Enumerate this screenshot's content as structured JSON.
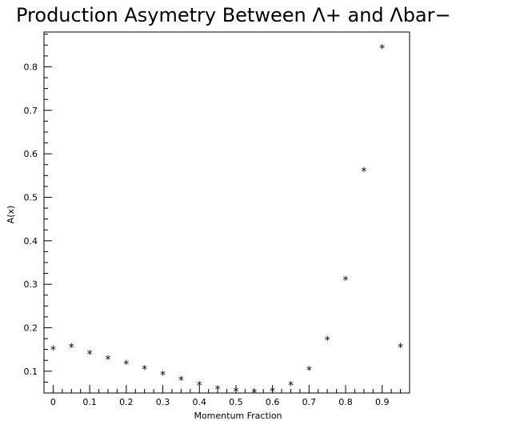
{
  "chart_data": {
    "type": "scatter",
    "title": "Production Asymetry Between Λ+ and Λbar−",
    "xlabel": "Momentum Fraction",
    "ylabel": "A(x)",
    "xlim": [
      -0.025,
      0.975
    ],
    "ylim": [
      0.05,
      0.88
    ],
    "x_ticks": [
      0,
      0.1,
      0.2,
      0.3,
      0.4,
      0.5,
      0.6,
      0.7,
      0.8,
      0.9
    ],
    "x_tick_labels": [
      "0",
      "0.1",
      "0.2",
      "0.3",
      "0.4",
      "0.5",
      "0.6",
      "0.7",
      "0.8",
      "0.9"
    ],
    "y_ticks": [
      0.1,
      0.2,
      0.3,
      0.4,
      0.5,
      0.6,
      0.7,
      0.8
    ],
    "y_tick_labels": [
      "0.1",
      "0.2",
      "0.3",
      "0.4",
      "0.5",
      "0.6",
      "0.7",
      "0.8"
    ],
    "grid": false,
    "marker": "*",
    "color": "#000000",
    "x": [
      0,
      0.05,
      0.1,
      0.15,
      0.2,
      0.25,
      0.3,
      0.35,
      0.4,
      0.45,
      0.5,
      0.55,
      0.6,
      0.65,
      0.7,
      0.75,
      0.8,
      0.85,
      0.9,
      0.95
    ],
    "y": [
      0.155,
      0.16,
      0.145,
      0.133,
      0.122,
      0.11,
      0.097,
      0.085,
      0.073,
      0.064,
      0.059,
      0.056,
      0.059,
      0.073,
      0.108,
      0.177,
      0.315,
      0.565,
      0.848,
      0.16
    ]
  }
}
